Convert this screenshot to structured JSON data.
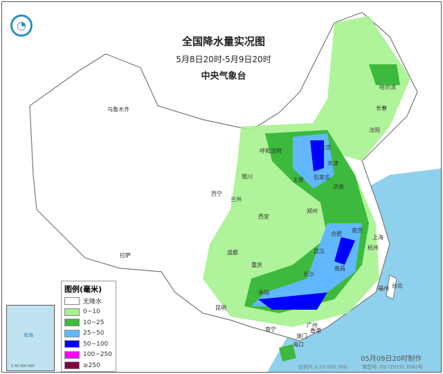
{
  "title": "全国降水量实况图",
  "period": "5月8日20时-5月9日20时",
  "issuer": "中央气象台",
  "legend": {
    "title": "图例(毫米)",
    "items": [
      {
        "label": "无降水",
        "color": "#ffffff"
      },
      {
        "label": "0~10",
        "color": "#a6f28f"
      },
      {
        "label": "10~25",
        "color": "#3dba3d"
      },
      {
        "label": "25~50",
        "color": "#61b8ff"
      },
      {
        "label": "50~100",
        "color": "#0000ff"
      },
      {
        "label": "100~250",
        "color": "#fa00fa"
      },
      {
        "label": "≥250",
        "color": "#800040"
      }
    ]
  },
  "cities": [
    "乌鲁木齐",
    "哈尔滨",
    "长春",
    "沈阳",
    "呼和浩特",
    "北京",
    "天津",
    "石家庄",
    "太原",
    "济南",
    "银川",
    "西宁",
    "兰州",
    "西安",
    "郑州",
    "合肥",
    "南京",
    "上海",
    "杭州",
    "武汉",
    "成都",
    "重庆",
    "长沙",
    "南昌",
    "福州",
    "台北",
    "贵阳",
    "昆明",
    "拉萨",
    "南宁",
    "广州",
    "香港",
    "澳门",
    "海口"
  ],
  "inset": {
    "label": "南海",
    "scale": "1:40 000 000"
  },
  "made": "05月09日20时制作",
  "scale": "比例尺 1:20 000 000",
  "map_no": "审图号: GS (2019) 3082号"
}
